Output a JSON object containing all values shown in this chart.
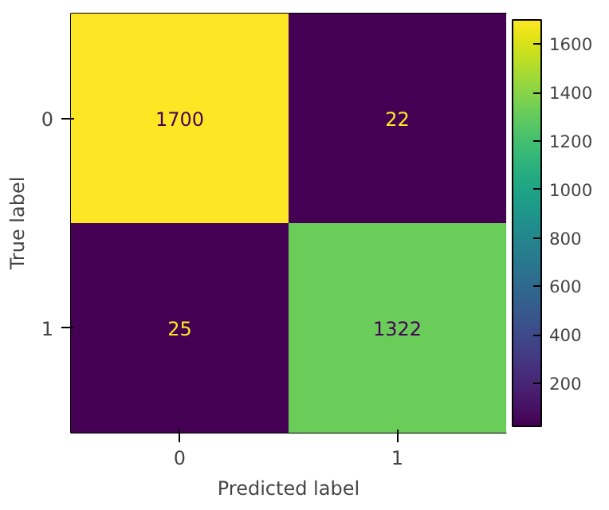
{
  "chart_data": {
    "type": "heatmap",
    "xlabel": "Predicted label",
    "ylabel": "True label",
    "categories": [
      "0",
      "1"
    ],
    "y_categories": [
      "0",
      "1"
    ],
    "cells": [
      [
        1700,
        22
      ],
      [
        25,
        1322
      ]
    ],
    "clim": [
      22,
      1700
    ],
    "cticks": [
      200,
      400,
      600,
      800,
      1000,
      1200,
      1400,
      1600
    ],
    "data_labels": true
  }
}
